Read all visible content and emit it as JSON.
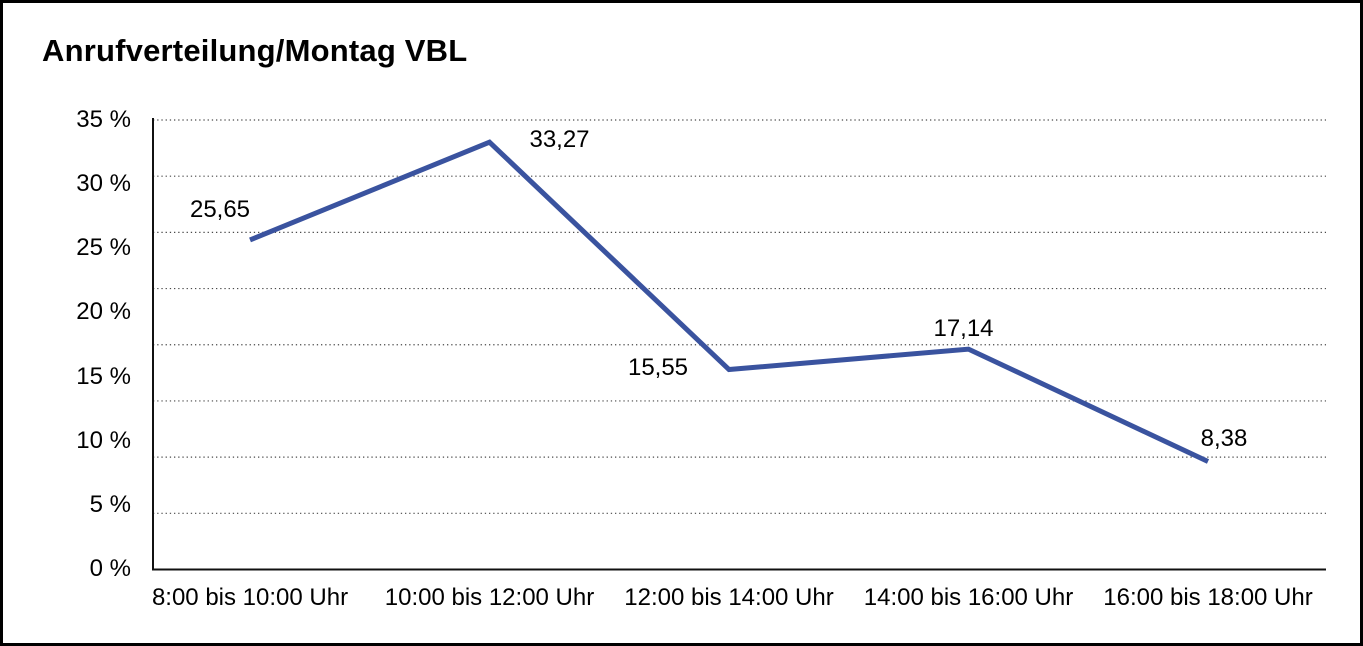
{
  "chart_data": {
    "type": "line",
    "title": "Anrufverteilung/Montag VBL",
    "categories": [
      "8:00 bis 10:00 Uhr",
      "10:00 bis 12:00 Uhr",
      "12:00 bis 14:00 Uhr",
      "14:00 bis 16:00 Uhr",
      "16:00 bis 18:00 Uhr"
    ],
    "values": [
      25.65,
      33.27,
      15.55,
      17.14,
      8.38
    ],
    "point_labels": [
      "25,65",
      "33,27",
      "15,55",
      "17,14",
      "8,38"
    ],
    "y_ticks": [
      "35 %",
      "30 %",
      "25 %",
      "20 %",
      "15 %",
      "10 %",
      "5 %",
      "0 %"
    ],
    "y_tick_values": [
      35,
      30,
      25,
      20,
      15,
      10,
      5,
      0
    ],
    "ylim": [
      0,
      35
    ],
    "xlabel": "",
    "ylabel": "",
    "legend": "none",
    "grid": "dotted-horizontal",
    "line_color": "#3A539F",
    "axis_color": "#111111",
    "text_color": "#000000"
  }
}
